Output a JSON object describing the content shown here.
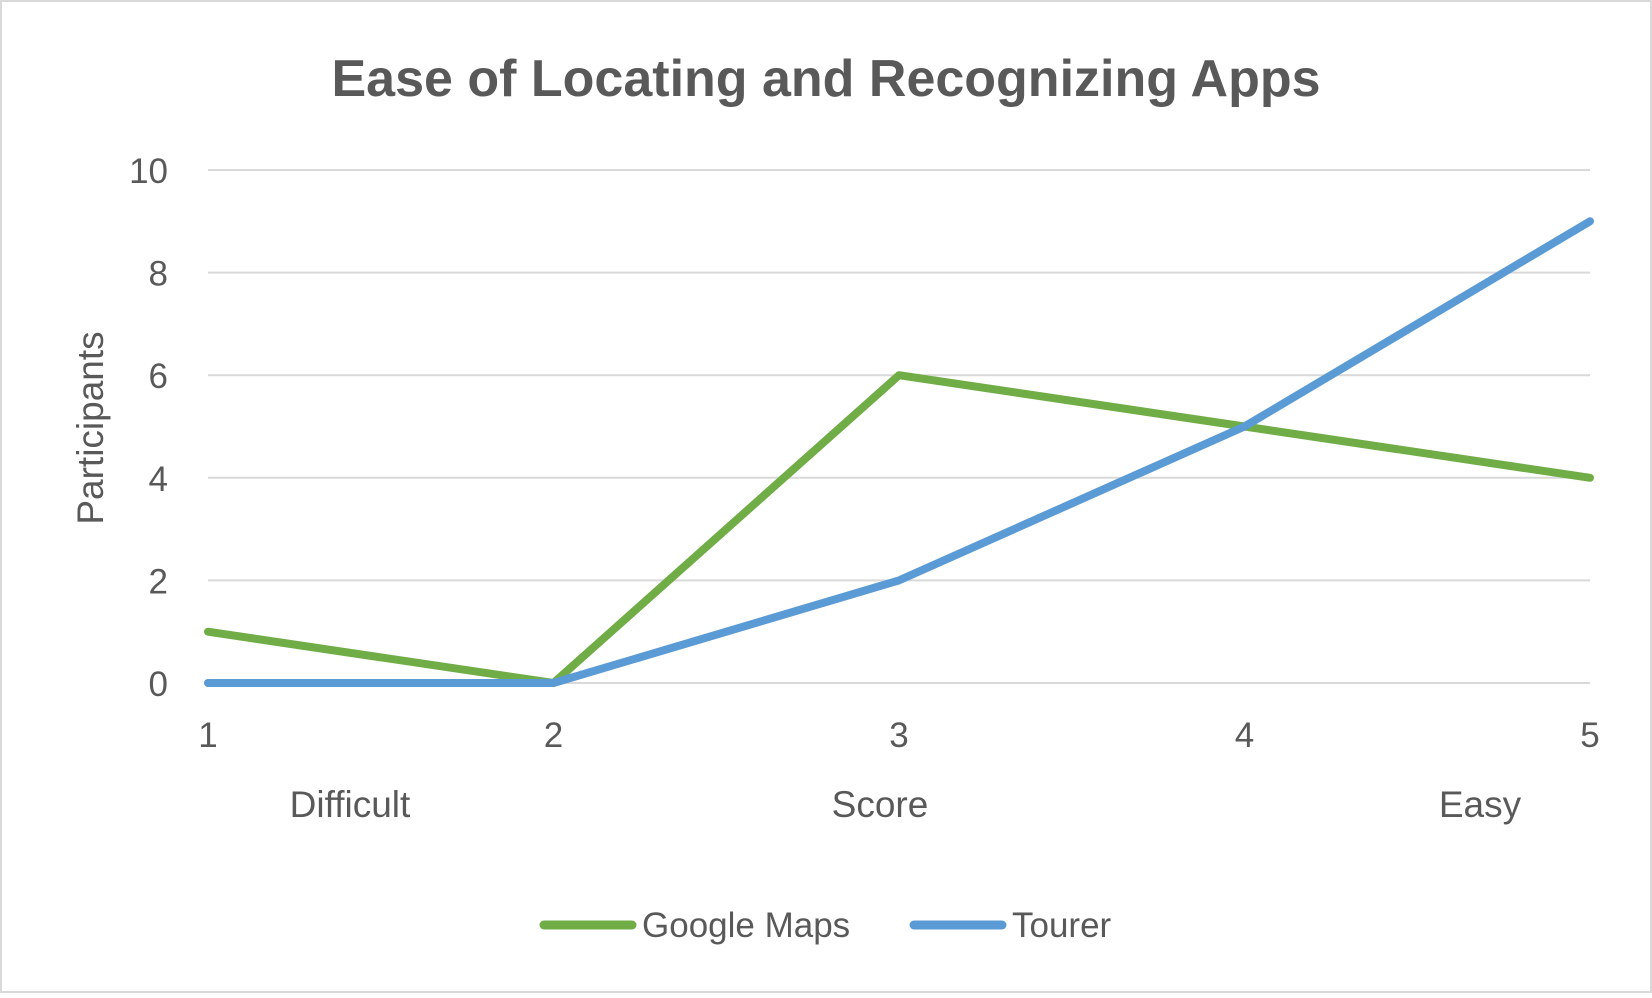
{
  "chart_data": {
    "type": "line",
    "title": "Ease of Locating and Recognizing Apps",
    "ylabel": "Participants",
    "xlabel": "Score",
    "x_end_labels": {
      "left": "Difficult",
      "right": "Easy"
    },
    "categories": [
      "1",
      "2",
      "3",
      "4",
      "5"
    ],
    "ylim": [
      0,
      10
    ],
    "yticks": [
      0,
      2,
      4,
      6,
      8,
      10
    ],
    "grid": true,
    "legend_position": "bottom",
    "series": [
      {
        "name": "Google Maps",
        "color": "#70ad47",
        "values": [
          1,
          0,
          6,
          5,
          4
        ]
      },
      {
        "name": "Tourer",
        "color": "#5b9bd5",
        "values": [
          0,
          0,
          2,
          5,
          9
        ]
      }
    ]
  }
}
